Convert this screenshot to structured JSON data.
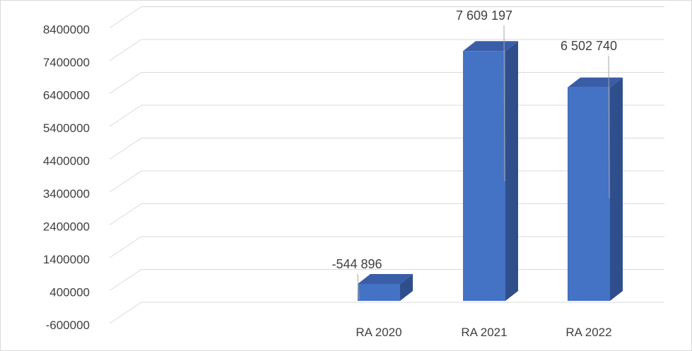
{
  "chart_data": {
    "type": "bar",
    "style": "3d-column",
    "categories": [
      "RA 2020",
      "RA 2021",
      "RA 2022"
    ],
    "values": [
      -544896,
      7609197,
      6502740
    ],
    "data_labels": [
      "-544 896",
      "7 609 197",
      "6 502 740"
    ],
    "yticks": [
      "-600000",
      "400000",
      "1400000",
      "2400000",
      "3400000",
      "4400000",
      "5400000",
      "6400000",
      "7400000",
      "8400000"
    ],
    "ylim": [
      -600000,
      9400000
    ],
    "grid": true,
    "legend": "none",
    "colors": {
      "bar_front": "#4472c4",
      "bar_side": "#2f4f8c",
      "bar_top": "#3a5da8",
      "grid": "#d9d9d9",
      "text": "#404040",
      "leader": "#a6a6a6"
    }
  }
}
